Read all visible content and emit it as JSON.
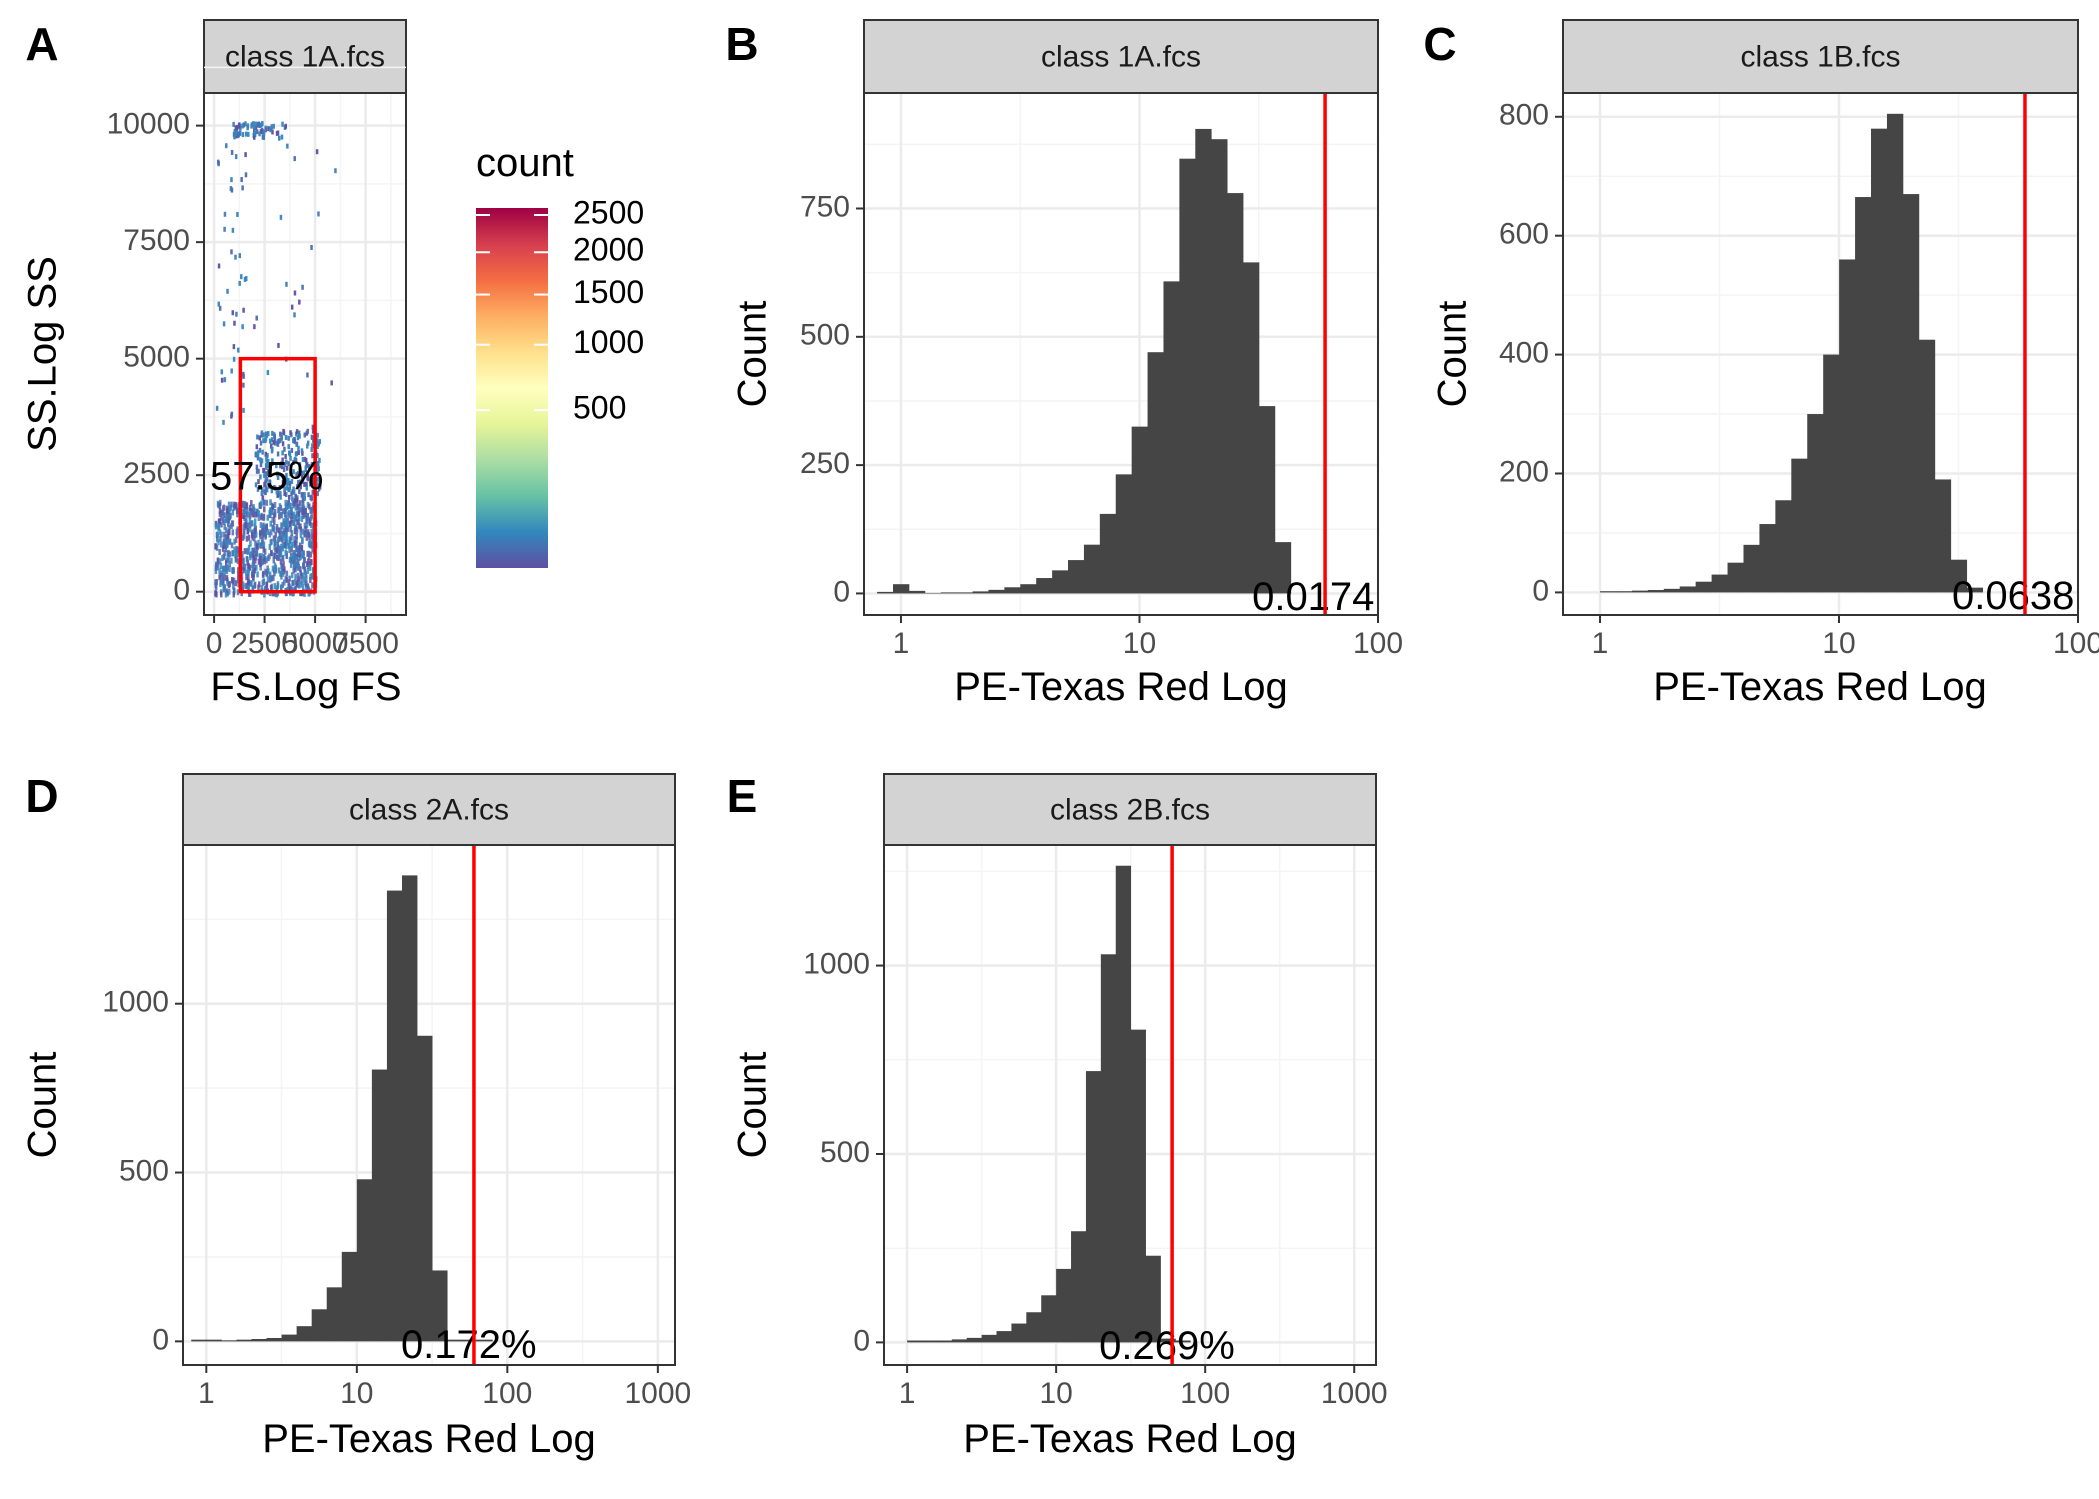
{
  "figure": {
    "panel_letters": [
      "A",
      "B",
      "C",
      "D",
      "E"
    ]
  },
  "colors": {
    "bar_fill": "#454545",
    "threshold_line": "#ff0000",
    "gate": "#ff0000",
    "strip_fill": "#d3d3d3",
    "grid_major": "#ebebeb",
    "grid_minor": "#f4f4f4",
    "panel_border": "#333333"
  },
  "chart_data": [
    {
      "panel": "A",
      "type": "heatmap",
      "strip_label": "class 1A.fcs",
      "xlabel": "FS.Log FS",
      "ylabel": "SS.Log SS",
      "xlim": [
        -500,
        9500
      ],
      "ylim": [
        -500,
        10700
      ],
      "x_ticks": [
        0,
        2500,
        5000,
        7500
      ],
      "x_tick_labels": [
        "0",
        "2500",
        "5000",
        "7500"
      ],
      "y_ticks": [
        0,
        2500,
        5000,
        7500,
        10000
      ],
      "y_tick_labels": [
        "0",
        "2500",
        "5000",
        "7500",
        "10000"
      ],
      "gate": {
        "x": [
          1300,
          5000
        ],
        "y": [
          0,
          5000
        ]
      },
      "gate_annotation": "57.5%",
      "legend": {
        "title": "count",
        "scale": "sqrt",
        "range": [
          0,
          2600
        ],
        "ticks": [
          500,
          1000,
          1500,
          2000,
          2500
        ],
        "tick_labels": [
          "500",
          "1000",
          "1500",
          "2000",
          "2500"
        ],
        "palette": "Spectral (reversed)"
      },
      "clusters": [
        {
          "x_range": [
            0,
            5000
          ],
          "y_range": [
            0,
            2000
          ],
          "density": "high"
        },
        {
          "x_range": [
            2000,
            5200
          ],
          "y_range": [
            2000,
            3500
          ],
          "density": "medium"
        },
        {
          "x_range": [
            0,
            6000
          ],
          "y_range": [
            3500,
            9800
          ],
          "density": "sparse"
        },
        {
          "x_range": [
            900,
            3700
          ],
          "y_range": [
            9800,
            10100
          ],
          "density": "sparse"
        }
      ]
    },
    {
      "panel": "B",
      "type": "bar",
      "strip_label": "class 1A.fcs",
      "xlabel": "PE-Texas Red Log",
      "ylabel": "Count",
      "x_scale": "log10",
      "xlim": [
        0.7,
        100
      ],
      "ylim": [
        -42,
        975
      ],
      "x_ticks": [
        1,
        10,
        100
      ],
      "x_tick_labels": [
        "1",
        "10",
        "100"
      ],
      "y_ticks": [
        0,
        250,
        500,
        750
      ],
      "y_tick_labels": [
        "0",
        "250",
        "500",
        "750"
      ],
      "bins_log10": [
        -0.1,
        1.7
      ],
      "bin_width_log10": 0.0667,
      "values": [
        3,
        18,
        5,
        1,
        2,
        2,
        4,
        7,
        12,
        18,
        30,
        45,
        65,
        95,
        155,
        232,
        325,
        470,
        608,
        847,
        905,
        885,
        780,
        645,
        365,
        100,
        0,
        0
      ],
      "threshold": 60,
      "annotation": "0.0174"
    },
    {
      "panel": "C",
      "type": "bar",
      "strip_label": "class 1B.fcs",
      "xlabel": "PE-Texas Red Log",
      "ylabel": "Count",
      "x_scale": "log10",
      "xlim": [
        0.7,
        100
      ],
      "ylim": [
        -38,
        840
      ],
      "x_ticks": [
        1,
        10,
        100
      ],
      "x_tick_labels": [
        "1",
        "10",
        "100"
      ],
      "y_ticks": [
        0,
        200,
        400,
        600,
        800
      ],
      "y_tick_labels": [
        "0",
        "200",
        "400",
        "600",
        "800"
      ],
      "bins_log10": [
        0,
        1.7
      ],
      "bin_width_log10": 0.0667,
      "values": [
        2,
        2,
        3,
        4,
        6,
        10,
        18,
        30,
        50,
        80,
        115,
        155,
        225,
        300,
        400,
        560,
        665,
        780,
        805,
        670,
        425,
        190,
        55,
        8,
        0
      ],
      "threshold": 60,
      "annotation": "0.0638"
    },
    {
      "panel": "D",
      "type": "bar",
      "strip_label": "class 2A.fcs",
      "xlabel": "PE-Texas Red Log",
      "ylabel": "Count",
      "x_scale": "log10",
      "xlim": [
        0.7,
        1300
      ],
      "ylim": [
        -70,
        1470
      ],
      "x_ticks": [
        1,
        10,
        100,
        1000
      ],
      "x_tick_labels": [
        "1",
        "10",
        "100",
        "1000"
      ],
      "y_ticks": [
        0,
        500,
        1000
      ],
      "y_tick_labels": [
        "0",
        "500",
        "1000"
      ],
      "bins_log10": [
        -0.1,
        2.0
      ],
      "bin_width_log10": 0.1,
      "values": [
        5,
        5,
        3,
        5,
        7,
        10,
        20,
        45,
        95,
        160,
        265,
        480,
        805,
        1335,
        1380,
        905,
        210,
        5,
        5,
        5,
        0
      ],
      "threshold": 60,
      "annotation": "0.172%"
    },
    {
      "panel": "E",
      "type": "bar",
      "strip_label": "class 2B.fcs",
      "xlabel": "PE-Texas Red Log",
      "ylabel": "Count",
      "x_scale": "log10",
      "xlim": [
        0.7,
        1400
      ],
      "ylim": [
        -60,
        1320
      ],
      "x_ticks": [
        1,
        10,
        100,
        1000
      ],
      "x_tick_labels": [
        "1",
        "10",
        "100",
        "1000"
      ],
      "y_ticks": [
        0,
        500,
        1000
      ],
      "y_tick_labels": [
        "0",
        "500",
        "1000"
      ],
      "bins_log10": [
        0,
        2.0
      ],
      "bin_width_log10": 0.1,
      "values": [
        5,
        5,
        5,
        8,
        12,
        20,
        30,
        50,
        80,
        125,
        195,
        295,
        720,
        1030,
        1265,
        830,
        230,
        10,
        5,
        0
      ],
      "threshold": 60,
      "annotation": "0.269%"
    }
  ]
}
